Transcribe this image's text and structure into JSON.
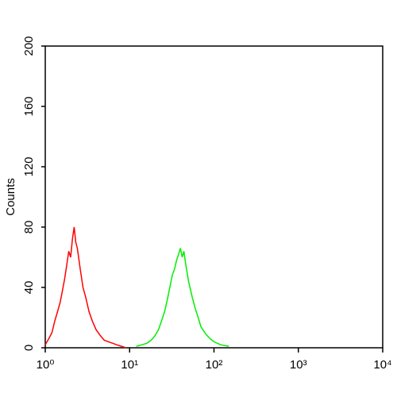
{
  "chart_data": {
    "type": "histogram-line",
    "y_label": "Counts",
    "log_x": true,
    "xlim": [
      1,
      10000
    ],
    "ylim": [
      0,
      200
    ],
    "xticks": [
      {
        "value": 1,
        "label": "10⁰"
      },
      {
        "value": 10,
        "label": "10¹"
      },
      {
        "value": 100,
        "label": "10²"
      },
      {
        "value": 1000,
        "label": "10³"
      },
      {
        "value": 10000,
        "label": "10⁴"
      }
    ],
    "yticks": [
      0,
      40,
      80,
      120,
      160,
      200
    ],
    "series": [
      {
        "color": "#ff0000",
        "x": [
          1.0,
          1.1,
          1.2,
          1.3,
          1.4,
          1.5,
          1.6,
          1.7,
          1.8,
          1.9,
          2.0,
          2.1,
          2.2,
          2.3,
          2.4,
          2.6,
          2.8,
          3.0,
          3.3,
          3.6,
          4.0,
          4.5,
          5.0,
          5.6,
          6.3,
          7.0,
          8.0,
          9.0
        ],
        "values": [
          2,
          6,
          10,
          18,
          24,
          30,
          38,
          46,
          55,
          64,
          60,
          72,
          80,
          70,
          66,
          52,
          40,
          34,
          24,
          18,
          12,
          8,
          5,
          4,
          3,
          2,
          1,
          0
        ]
      },
      {
        "color": "#00ee00",
        "x": [
          12,
          14,
          16,
          18,
          20,
          22,
          24,
          26,
          28,
          30,
          32,
          34,
          36,
          38,
          40,
          42,
          44,
          46,
          48,
          50,
          55,
          60,
          65,
          70,
          80,
          90,
          100,
          120,
          150
        ],
        "values": [
          1,
          2,
          3,
          5,
          8,
          12,
          18,
          24,
          32,
          40,
          48,
          52,
          58,
          62,
          66,
          60,
          64,
          56,
          50,
          44,
          34,
          26,
          20,
          14,
          9,
          6,
          4,
          2,
          1
        ]
      }
    ]
  }
}
